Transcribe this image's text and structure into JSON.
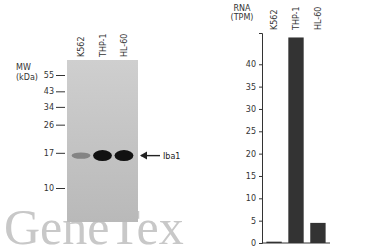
{
  "chart_data": {
    "type": "bar",
    "y_label": [
      "RNA",
      "(TPM)"
    ],
    "categories": [
      "K562",
      "THP-1",
      "HL-60"
    ],
    "values": [
      0.3,
      46,
      4.5
    ],
    "color": "#333333",
    "ylim": [
      0,
      47
    ],
    "yticks": [
      0,
      5,
      10,
      15,
      20,
      25,
      30,
      35,
      40
    ],
    "grid": false
  },
  "blot": {
    "mw_label": "MW",
    "mw_unit": "(kDa)",
    "markers": [
      55,
      43,
      34,
      26,
      17,
      10
    ],
    "lanes": [
      "K562",
      "THP-1",
      "HL-60"
    ],
    "band_label": "Iba1",
    "band_kda": 16.3,
    "band_intensity": [
      0.35,
      1,
      1
    ]
  },
  "watermark": "GeneTex"
}
